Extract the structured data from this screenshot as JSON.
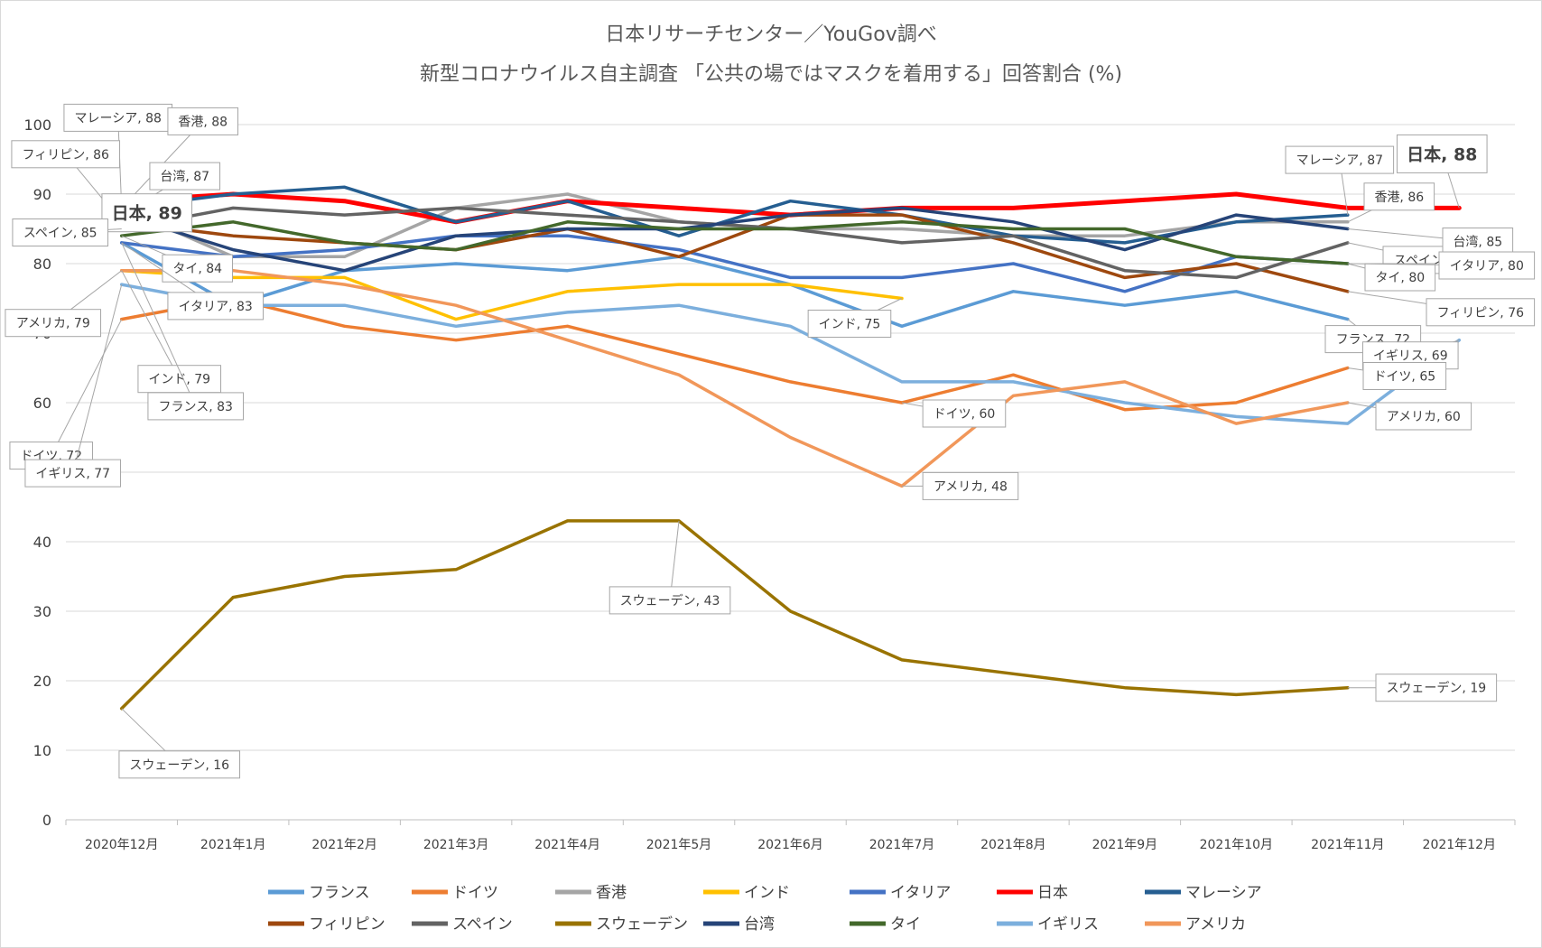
{
  "chart_data": {
    "type": "line",
    "title": "日本リサーチセンター／YouGov調べ",
    "subtitle": "新型コロナウイルス自主調査 「公共の場ではマスクを着用する」回答割合 (%)",
    "categories": [
      "2020年12月",
      "2021年1月",
      "2021年2月",
      "2021年3月",
      "2021年4月",
      "2021年5月",
      "2021年6月",
      "2021年7月",
      "2021年8月",
      "2021年9月",
      "2021年10月",
      "2021年11月",
      "2021年12月"
    ],
    "ylim": [
      0,
      100
    ],
    "yticks": [
      0,
      10,
      20,
      30,
      40,
      50,
      60,
      70,
      80,
      90,
      100
    ],
    "grid": true,
    "legend_position": "bottom",
    "series": [
      {
        "name": "フランス",
        "color": "#5b9bd5",
        "values": [
          83,
          74,
          79,
          80,
          79,
          81,
          77,
          71,
          76,
          74,
          76,
          72,
          null
        ]
      },
      {
        "name": "ドイツ",
        "color": "#ed7d31",
        "values": [
          72,
          75,
          71,
          69,
          71,
          67,
          63,
          60,
          64,
          59,
          60,
          65,
          null
        ]
      },
      {
        "name": "香港",
        "color": "#a5a5a5",
        "values": [
          88,
          81,
          81,
          88,
          90,
          86,
          85,
          85,
          84,
          84,
          86,
          86,
          null
        ]
      },
      {
        "name": "インド",
        "color": "#ffc000",
        "values": [
          79,
          78,
          78,
          72,
          76,
          77,
          77,
          75,
          null,
          null,
          null,
          null,
          null
        ]
      },
      {
        "name": "イタリア",
        "color": "#4472c4",
        "values": [
          83,
          81,
          82,
          84,
          84,
          82,
          78,
          78,
          80,
          76,
          81,
          80,
          null
        ]
      },
      {
        "name": "日本",
        "color": "#ff0000",
        "values": [
          89,
          90,
          89,
          86,
          89,
          88,
          87,
          88,
          88,
          89,
          90,
          88,
          88
        ]
      },
      {
        "name": "マレーシア",
        "color": "#255e91",
        "values": [
          88,
          90,
          91,
          86,
          89,
          84,
          89,
          87,
          84,
          83,
          86,
          87,
          null
        ]
      },
      {
        "name": "フィリピン",
        "color": "#9e480e",
        "values": [
          86,
          84,
          83,
          82,
          85,
          81,
          87,
          87,
          83,
          78,
          80,
          76,
          null
        ]
      },
      {
        "name": "スペイン",
        "color": "#636363",
        "values": [
          85,
          88,
          87,
          88,
          87,
          86,
          85,
          83,
          84,
          79,
          78,
          83,
          null
        ]
      },
      {
        "name": "スウェーデン",
        "color": "#997300",
        "values": [
          16,
          32,
          35,
          36,
          43,
          43,
          30,
          23,
          21,
          19,
          18,
          19,
          null
        ]
      },
      {
        "name": "台湾",
        "color": "#264478",
        "values": [
          87,
          82,
          79,
          84,
          85,
          85,
          87,
          88,
          86,
          82,
          87,
          85,
          null
        ]
      },
      {
        "name": "タイ",
        "color": "#43682b",
        "values": [
          84,
          86,
          83,
          82,
          86,
          85,
          85,
          86,
          85,
          85,
          81,
          80,
          null
        ]
      },
      {
        "name": "イギリス",
        "color": "#7cafdd",
        "values": [
          77,
          74,
          74,
          71,
          73,
          74,
          71,
          63,
          63,
          60,
          58,
          57,
          69
        ]
      },
      {
        "name": "アメリカ",
        "color": "#f1975a",
        "values": [
          79,
          79,
          77,
          74,
          69,
          64,
          55,
          48,
          61,
          63,
          57,
          60,
          null
        ]
      }
    ],
    "data_labels": [
      {
        "text": "マレーシア, 88",
        "series": "マレーシア",
        "index": 0
      },
      {
        "text": "香港, 88",
        "series": "香港",
        "index": 0
      },
      {
        "text": "フィリピン, 86",
        "series": "フィリピン",
        "index": 0
      },
      {
        "text": "台湾, 87",
        "series": "台湾",
        "index": 0
      },
      {
        "text": "日本, 89",
        "series": "日本",
        "index": 0,
        "bold": true
      },
      {
        "text": "スペイン, 85",
        "series": "スペイン",
        "index": 0
      },
      {
        "text": "タイ, 84",
        "series": "タイ",
        "index": 0
      },
      {
        "text": "アメリカ, 79",
        "series": "アメリカ",
        "index": 0
      },
      {
        "text": "イタリア, 83",
        "series": "イタリア",
        "index": 0
      },
      {
        "text": "インド, 79",
        "series": "インド",
        "index": 0
      },
      {
        "text": "ドイツ, 72",
        "series": "ドイツ",
        "index": 0
      },
      {
        "text": "フランス, 83",
        "series": "フランス",
        "index": 0
      },
      {
        "text": "イギリス, 77",
        "series": "イギリス",
        "index": 0
      },
      {
        "text": "スウェーデン, 16",
        "series": "スウェーデン",
        "index": 0
      },
      {
        "text": "スウェーデン, 43",
        "series": "スウェーデン",
        "index": 5
      },
      {
        "text": "インド, 75",
        "series": "インド",
        "index": 7
      },
      {
        "text": "ドイツ, 60",
        "series": "ドイツ",
        "index": 7
      },
      {
        "text": "アメリカ, 48",
        "series": "アメリカ",
        "index": 7
      },
      {
        "text": "マレーシア, 87",
        "series": "マレーシア",
        "index": 11
      },
      {
        "text": "日本, 88",
        "series": "日本",
        "index": 12,
        "bold": true
      },
      {
        "text": "香港, 86",
        "series": "香港",
        "index": 11
      },
      {
        "text": "スペイン, 83",
        "series": "スペイン",
        "index": 11
      },
      {
        "text": "台湾, 85",
        "series": "台湾",
        "index": 11
      },
      {
        "text": "タイ, 80",
        "series": "タイ",
        "index": 11
      },
      {
        "text": "イタリア, 80",
        "series": "イタリア",
        "index": 11
      },
      {
        "text": "フィリピン, 76",
        "series": "フィリピン",
        "index": 11
      },
      {
        "text": "フランス, 72",
        "series": "フランス",
        "index": 11
      },
      {
        "text": "イギリス, 69",
        "series": "イギリス",
        "index": 12
      },
      {
        "text": "ドイツ, 65",
        "series": "ドイツ",
        "index": 11
      },
      {
        "text": "アメリカ, 60",
        "series": "アメリカ",
        "index": 11
      },
      {
        "text": "スウェーデン, 19",
        "series": "スウェーデン",
        "index": 11
      }
    ]
  }
}
